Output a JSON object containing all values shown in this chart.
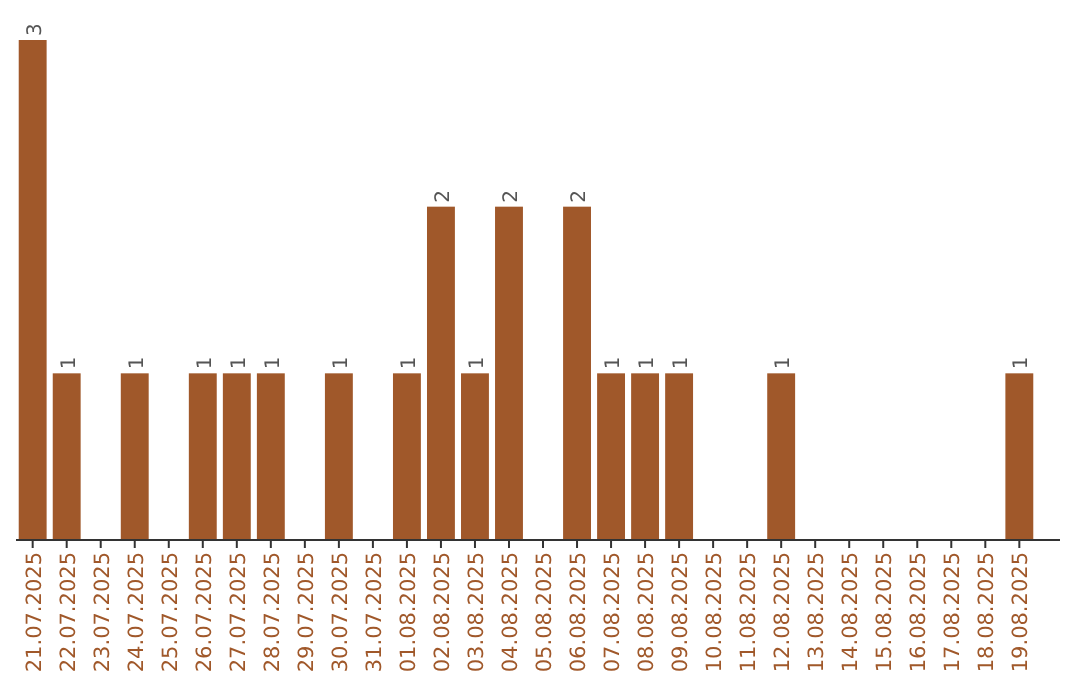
{
  "chart_data": {
    "type": "bar",
    "categories": [
      "21.07.2025",
      "22.07.2025",
      "23.07.2025",
      "24.07.2025",
      "25.07.2025",
      "26.07.2025",
      "27.07.2025",
      "28.07.2025",
      "29.07.2025",
      "30.07.2025",
      "31.07.2025",
      "01.08.2025",
      "02.08.2025",
      "03.08.2025",
      "04.08.2025",
      "05.08.2025",
      "06.08.2025",
      "07.08.2025",
      "08.08.2025",
      "09.08.2025",
      "10.08.2025",
      "11.08.2025",
      "12.08.2025",
      "13.08.2025",
      "14.08.2025",
      "15.08.2025",
      "16.08.2025",
      "17.08.2025",
      "18.08.2025",
      "19.08.2025"
    ],
    "values": [
      3,
      1,
      0,
      1,
      0,
      1,
      1,
      1,
      0,
      1,
      0,
      1,
      2,
      1,
      2,
      0,
      2,
      1,
      1,
      1,
      0,
      0,
      1,
      0,
      0,
      0,
      0,
      0,
      0,
      1
    ],
    "value_labels": [
      "3",
      "1",
      null,
      "1",
      null,
      "1",
      "1",
      "1",
      null,
      "1",
      null,
      "1",
      "2",
      "1",
      "2",
      null,
      "2",
      "1",
      "1",
      "1",
      null,
      null,
      "1",
      null,
      null,
      null,
      null,
      null,
      null,
      "1"
    ],
    "color": "#a0582a"
  }
}
